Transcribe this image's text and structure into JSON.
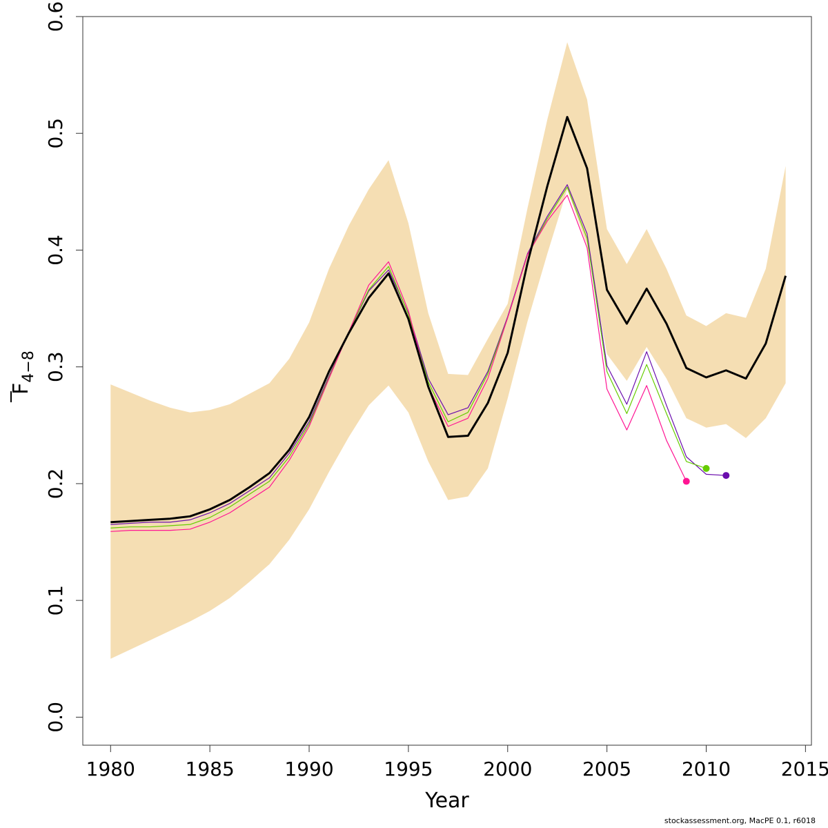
{
  "chart_data": {
    "type": "line",
    "xlabel": "Year",
    "ylabel_main": "F",
    "ylabel_sub": "4−8",
    "xlim": [
      1978.6,
      2015.3
    ],
    "ylim": [
      -0.024,
      0.6
    ],
    "xticks": [
      1980,
      1985,
      1990,
      1995,
      2000,
      2005,
      2010,
      2015
    ],
    "yticks": [
      0.0,
      0.1,
      0.2,
      0.3,
      0.4,
      0.5,
      0.6
    ],
    "ytick_labels": [
      "0.0",
      "0.1",
      "0.2",
      "0.3",
      "0.4",
      "0.5",
      "0.6"
    ],
    "band": {
      "color": "#F5DEB3",
      "x": [
        1980,
        1981,
        1982,
        1983,
        1984,
        1985,
        1986,
        1987,
        1988,
        1989,
        1990,
        1991,
        1992,
        1993,
        1994,
        1995,
        1996,
        1997,
        1998,
        1999,
        2000,
        2001,
        2002,
        2003,
        2004,
        2005,
        2006,
        2007,
        2008,
        2009,
        2010,
        2011,
        2012,
        2013,
        2014
      ],
      "lower": [
        0.05,
        0.058,
        0.066,
        0.074,
        0.082,
        0.091,
        0.102,
        0.116,
        0.131,
        0.152,
        0.178,
        0.21,
        0.24,
        0.267,
        0.284,
        0.261,
        0.219,
        0.186,
        0.189,
        0.213,
        0.273,
        0.339,
        0.397,
        0.452,
        0.404,
        0.311,
        0.288,
        0.317,
        0.29,
        0.256,
        0.248,
        0.251,
        0.239,
        0.256,
        0.286
      ],
      "upper": [
        0.285,
        0.278,
        0.271,
        0.265,
        0.261,
        0.263,
        0.268,
        0.277,
        0.286,
        0.307,
        0.338,
        0.384,
        0.421,
        0.452,
        0.477,
        0.423,
        0.346,
        0.294,
        0.293,
        0.324,
        0.354,
        0.436,
        0.512,
        0.578,
        0.529,
        0.418,
        0.388,
        0.418,
        0.384,
        0.344,
        0.335,
        0.346,
        0.342,
        0.384,
        0.472
      ]
    },
    "series": [
      {
        "color": "#000000",
        "width": 3,
        "x": [
          1980,
          1981,
          1982,
          1983,
          1984,
          1985,
          1986,
          1987,
          1988,
          1989,
          1990,
          1991,
          1992,
          1993,
          1994,
          1995,
          1996,
          1997,
          1998,
          1999,
          2000,
          2001,
          2002,
          2003,
          2004,
          2005,
          2006,
          2007,
          2008,
          2009,
          2010,
          2011,
          2012,
          2013,
          2014
        ],
        "values": [
          0.167,
          0.168,
          0.169,
          0.17,
          0.172,
          0.178,
          0.186,
          0.197,
          0.209,
          0.229,
          0.257,
          0.296,
          0.329,
          0.359,
          0.38,
          0.341,
          0.283,
          0.24,
          0.241,
          0.269,
          0.312,
          0.389,
          0.455,
          0.514,
          0.47,
          0.366,
          0.337,
          0.367,
          0.337,
          0.299,
          0.291,
          0.297,
          0.29,
          0.32,
          0.378
        ],
        "endpoint": null
      },
      {
        "color": "#6A0DAD",
        "width": 1.2,
        "x": [
          1980,
          1981,
          1982,
          1983,
          1984,
          1985,
          1986,
          1987,
          1988,
          1989,
          1990,
          1991,
          1992,
          1993,
          1994,
          1995,
          1996,
          1997,
          1998,
          1999,
          2000,
          2001,
          2002,
          2003,
          2004,
          2005,
          2006,
          2007,
          2008,
          2009,
          2010,
          2011
        ],
        "values": [
          0.165,
          0.166,
          0.167,
          0.167,
          0.169,
          0.175,
          0.183,
          0.194,
          0.205,
          0.226,
          0.253,
          0.292,
          0.33,
          0.365,
          0.383,
          0.346,
          0.29,
          0.259,
          0.265,
          0.296,
          0.343,
          0.397,
          0.429,
          0.456,
          0.414,
          0.301,
          0.268,
          0.313,
          0.267,
          0.223,
          0.208,
          0.207
        ],
        "endpoint": {
          "x": 2011,
          "y": 0.207
        }
      },
      {
        "color": "#66CC00",
        "width": 1.2,
        "x": [
          1980,
          1981,
          1982,
          1983,
          1984,
          1985,
          1986,
          1987,
          1988,
          1989,
          1990,
          1991,
          1992,
          1993,
          1994,
          1995,
          1996,
          1997,
          1998,
          1999,
          2000,
          2001,
          2002,
          2003,
          2004,
          2005,
          2006,
          2007,
          2008,
          2009,
          2010
        ],
        "values": [
          0.162,
          0.163,
          0.163,
          0.164,
          0.165,
          0.171,
          0.18,
          0.191,
          0.202,
          0.223,
          0.251,
          0.291,
          0.33,
          0.366,
          0.386,
          0.345,
          0.287,
          0.253,
          0.261,
          0.294,
          0.342,
          0.396,
          0.427,
          0.454,
          0.41,
          0.296,
          0.26,
          0.302,
          0.26,
          0.219,
          0.213
        ],
        "endpoint": {
          "x": 2010,
          "y": 0.213
        }
      },
      {
        "color": "#FF1493",
        "width": 1.2,
        "x": [
          1980,
          1981,
          1982,
          1983,
          1984,
          1985,
          1986,
          1987,
          1988,
          1989,
          1990,
          1991,
          1992,
          1993,
          1994,
          1995,
          1996,
          1997,
          1998,
          1999,
          2000,
          2001,
          2002,
          2003,
          2004,
          2005,
          2006,
          2007,
          2008,
          2009
        ],
        "values": [
          0.159,
          0.16,
          0.16,
          0.16,
          0.161,
          0.167,
          0.175,
          0.186,
          0.197,
          0.22,
          0.249,
          0.29,
          0.33,
          0.37,
          0.39,
          0.348,
          0.283,
          0.249,
          0.256,
          0.29,
          0.342,
          0.396,
          0.425,
          0.447,
          0.402,
          0.281,
          0.246,
          0.284,
          0.237,
          0.202
        ],
        "endpoint": {
          "x": 2009,
          "y": 0.202
        }
      }
    ]
  },
  "footer_text": "stockassessment.org, MacPE 0.1, r6018"
}
